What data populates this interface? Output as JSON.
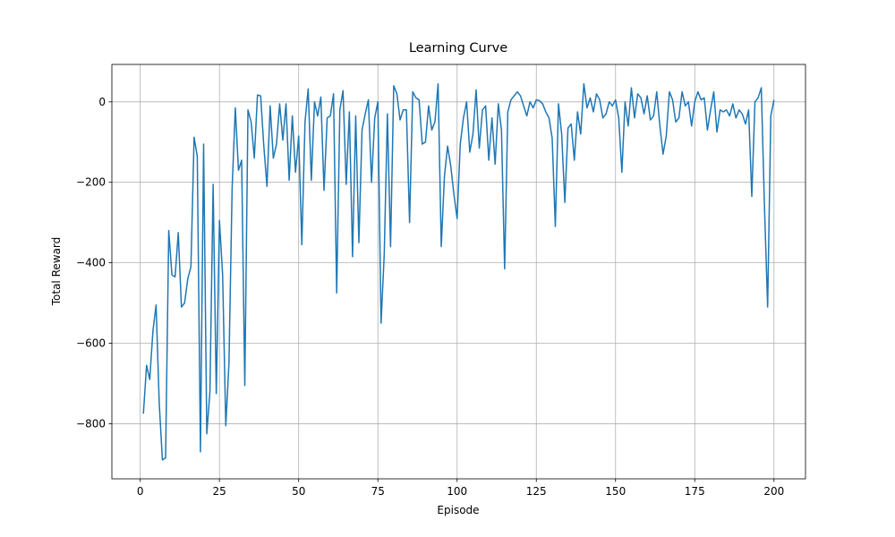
{
  "chart_data": {
    "type": "line",
    "title": "Learning Curve",
    "x_label": "Episode",
    "y_label": "Total Reward",
    "x": [
      1,
      2,
      3,
      4,
      5,
      6,
      7,
      8,
      9,
      10,
      11,
      12,
      13,
      14,
      15,
      16,
      17,
      18,
      19,
      20,
      21,
      22,
      23,
      24,
      25,
      26,
      27,
      28,
      29,
      30,
      31,
      32,
      33,
      34,
      35,
      36,
      37,
      38,
      39,
      40,
      41,
      42,
      43,
      44,
      45,
      46,
      47,
      48,
      49,
      50,
      51,
      52,
      53,
      54,
      55,
      56,
      57,
      58,
      59,
      60,
      61,
      62,
      63,
      64,
      65,
      66,
      67,
      68,
      69,
      70,
      71,
      72,
      73,
      74,
      75,
      76,
      77,
      78,
      79,
      80,
      81,
      82,
      83,
      84,
      85,
      86,
      87,
      88,
      89,
      90,
      91,
      92,
      93,
      94,
      95,
      96,
      97,
      98,
      99,
      100,
      101,
      102,
      103,
      104,
      105,
      106,
      107,
      108,
      109,
      110,
      111,
      112,
      113,
      114,
      115,
      116,
      117,
      118,
      119,
      120,
      121,
      122,
      123,
      124,
      125,
      126,
      127,
      128,
      129,
      130,
      131,
      132,
      133,
      134,
      135,
      136,
      137,
      138,
      139,
      140,
      141,
      142,
      143,
      144,
      145,
      146,
      147,
      148,
      149,
      150,
      151,
      152,
      153,
      154,
      155,
      156,
      157,
      158,
      159,
      160,
      161,
      162,
      163,
      164,
      165,
      166,
      167,
      168,
      169,
      170,
      171,
      172,
      173,
      174,
      175,
      176,
      177,
      178,
      179,
      180,
      181,
      182,
      183,
      184,
      185,
      186,
      187,
      188,
      189,
      190,
      191,
      192,
      193,
      194,
      195,
      196,
      197,
      198,
      199,
      200
    ],
    "series": [
      {
        "name": "Total Reward",
        "color": "#1f77b4",
        "values": [
          -775,
          -655,
          -690,
          -570,
          -505,
          -750,
          -890,
          -885,
          -320,
          -430,
          -435,
          -325,
          -510,
          -500,
          -440,
          -410,
          -88,
          -135,
          -870,
          -105,
          -825,
          -720,
          -205,
          -725,
          -295,
          -430,
          -805,
          -650,
          -215,
          -15,
          -170,
          -145,
          -705,
          -20,
          -50,
          -140,
          17,
          15,
          -110,
          -210,
          -10,
          -140,
          -105,
          -5,
          -95,
          -5,
          -195,
          -35,
          -175,
          -85,
          -355,
          -50,
          32,
          -195,
          0,
          -35,
          12,
          -220,
          -40,
          -35,
          20,
          -475,
          -20,
          28,
          -205,
          -25,
          -385,
          -35,
          -350,
          -70,
          -30,
          5,
          -200,
          -40,
          0,
          -550,
          -380,
          -30,
          -360,
          40,
          20,
          -45,
          -20,
          -20,
          -300,
          25,
          10,
          5,
          -105,
          -100,
          -10,
          -70,
          -50,
          45,
          -360,
          -185,
          -110,
          -160,
          -230,
          -290,
          -105,
          -40,
          0,
          -125,
          -80,
          30,
          -115,
          -20,
          -10,
          -145,
          -40,
          -155,
          -5,
          -70,
          -415,
          -25,
          5,
          15,
          25,
          15,
          -10,
          -35,
          0,
          -15,
          5,
          3,
          -5,
          -25,
          -40,
          -90,
          -310,
          -5,
          -80,
          -250,
          -65,
          -55,
          -145,
          -25,
          -80,
          45,
          -15,
          10,
          -25,
          20,
          5,
          -40,
          -30,
          0,
          -10,
          5,
          -40,
          -175,
          0,
          -60,
          35,
          -40,
          20,
          10,
          -30,
          15,
          -45,
          -35,
          25,
          -60,
          -130,
          -85,
          25,
          5,
          -50,
          -40,
          25,
          -10,
          0,
          -60,
          0,
          25,
          5,
          10,
          -70,
          -20,
          25,
          -75,
          -20,
          -25,
          -20,
          -35,
          -5,
          -40,
          -20,
          -30,
          -55,
          -20,
          -235,
          0,
          10,
          35,
          -260,
          -510,
          -35,
          5
        ]
      }
    ],
    "xlim": [
      -8.95,
      209.95
    ],
    "ylim": [
      -937,
      93
    ],
    "xticks": [
      0,
      25,
      50,
      75,
      100,
      125,
      150,
      175,
      200
    ],
    "yticks": [
      {
        "value": -800,
        "label": "−800"
      },
      {
        "value": -600,
        "label": "−600"
      },
      {
        "value": -400,
        "label": "−400"
      },
      {
        "value": -200,
        "label": "−200"
      },
      0
    ],
    "grid": true
  }
}
